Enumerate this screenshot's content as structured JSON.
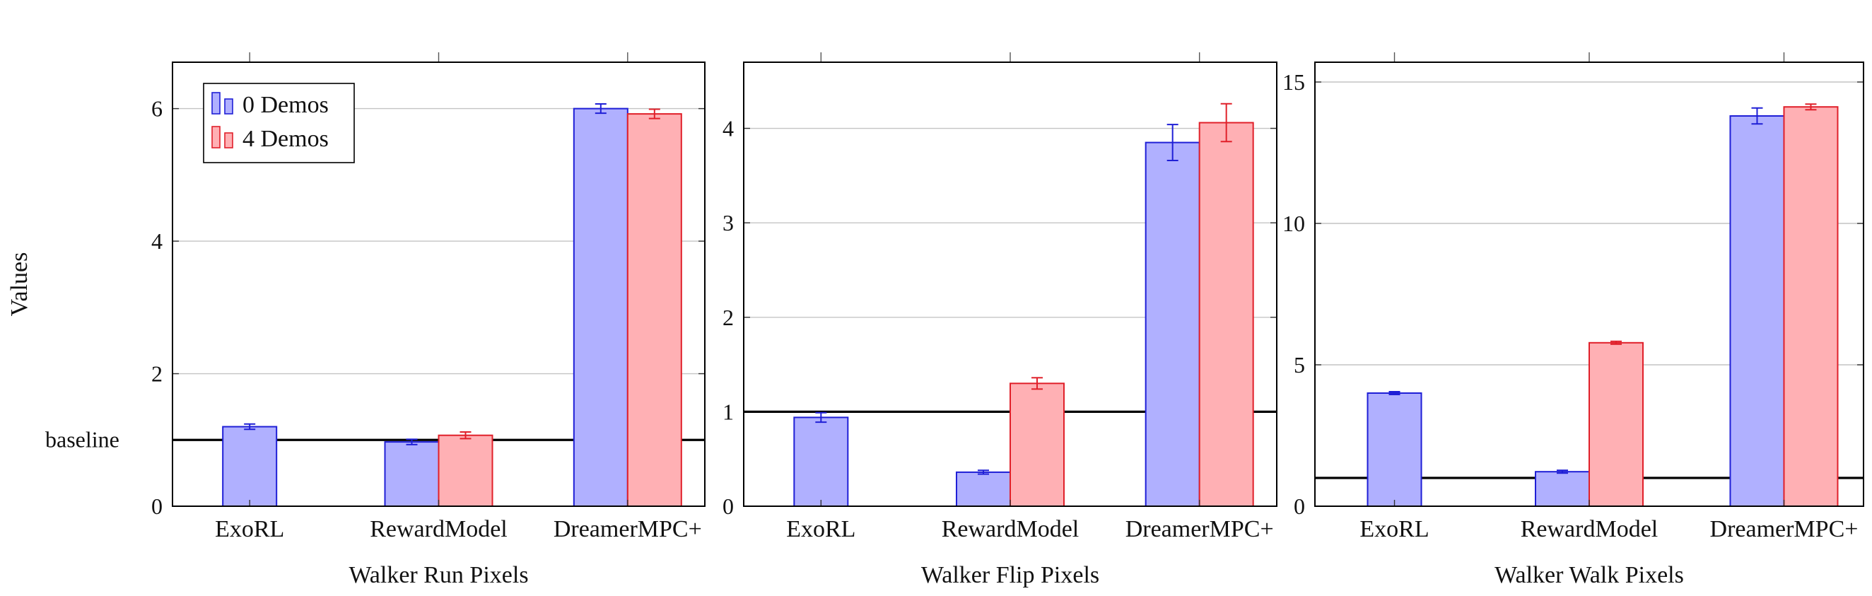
{
  "figure": {
    "ylabel": "Values",
    "baseline_label": "baseline",
    "baseline_value": 1
  },
  "legend": [
    {
      "label": "0 Demos",
      "fill": "#b0b0ff",
      "stroke": "#1f1fd6"
    },
    {
      "label": "4 Demos",
      "fill": "#ffb0b4",
      "stroke": "#e0202a"
    }
  ],
  "chart_data": [
    {
      "type": "bar",
      "xlabel": "Walker Run Pixels",
      "categories": [
        "ExoRL",
        "RewardModel",
        "DreamerMPC+"
      ],
      "ylim": [
        0,
        6.7
      ],
      "yticks": [
        0,
        2,
        4,
        6
      ],
      "grid": true,
      "legend_position": "top-left",
      "series": [
        {
          "name": "0 Demos",
          "values": [
            1.2,
            0.97,
            6.0
          ],
          "errors": [
            0.04,
            0.04,
            0.07
          ]
        },
        {
          "name": "4 Demos",
          "values": [
            null,
            1.07,
            5.92
          ],
          "errors": [
            null,
            0.05,
            0.07
          ]
        }
      ]
    },
    {
      "type": "bar",
      "xlabel": "Walker Flip Pixels",
      "categories": [
        "ExoRL",
        "RewardModel",
        "DreamerMPC+"
      ],
      "ylim": [
        0,
        4.7
      ],
      "yticks": [
        0,
        1,
        2,
        3,
        4
      ],
      "grid": true,
      "series": [
        {
          "name": "0 Demos",
          "values": [
            0.94,
            0.36,
            3.85
          ],
          "errors": [
            0.05,
            0.02,
            0.19
          ]
        },
        {
          "name": "4 Demos",
          "values": [
            null,
            1.3,
            4.06
          ],
          "errors": [
            null,
            0.06,
            0.2
          ]
        }
      ]
    },
    {
      "type": "bar",
      "xlabel": "Walker Walk Pixels",
      "categories": [
        "ExoRL",
        "RewardModel",
        "DreamerMPC+"
      ],
      "ylim": [
        0,
        15.7
      ],
      "yticks": [
        0,
        5,
        10,
        15
      ],
      "grid": true,
      "series": [
        {
          "name": "0 Demos",
          "values": [
            4.0,
            1.22,
            13.8
          ],
          "errors": [
            0.05,
            0.05,
            0.28
          ]
        },
        {
          "name": "4 Demos",
          "values": [
            null,
            5.78,
            14.12
          ],
          "errors": [
            null,
            0.05,
            0.1
          ]
        }
      ]
    }
  ]
}
